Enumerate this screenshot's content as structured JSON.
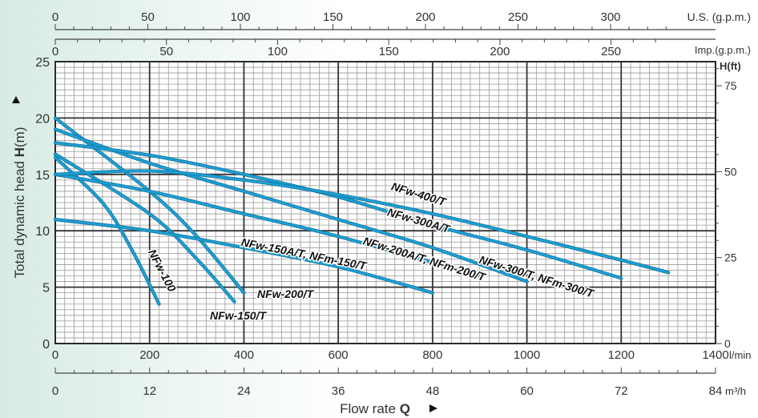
{
  "chart_data": {
    "type": "line",
    "xlabel": "Flow rate Q",
    "ylabel": "Total dynamic head H(m)",
    "x_unit": "l/min",
    "xlim": [
      0,
      1400
    ],
    "ylim": [
      0,
      25
    ],
    "grid": true,
    "x_ticks": [
      "0",
      "200",
      "400",
      "600",
      "800",
      "1000",
      "1200",
      "1400"
    ],
    "y_ticks": [
      "0",
      "5",
      "10",
      "15",
      "20",
      "25"
    ],
    "secondary_axes": {
      "top_us": {
        "unit": "U.S. (g.p.m.)",
        "ticks": [
          "0",
          "50",
          "100",
          "150",
          "200",
          "250",
          "300"
        ]
      },
      "top_imp": {
        "unit": "Imp.(g.p.m.)",
        "ticks": [
          "0",
          "50",
          "100",
          "150",
          "200",
          "250"
        ]
      },
      "bottom_m3h": {
        "unit": "m³/h",
        "ticks": [
          "0",
          "12",
          "24",
          "36",
          "48",
          "60",
          "72",
          "84"
        ]
      },
      "right_ft": {
        "unit": "H(ft)",
        "ticks": [
          "0",
          "25",
          "50",
          "75"
        ]
      }
    },
    "series": [
      {
        "name": "NFw-100",
        "x": [
          0,
          100,
          160,
          220
        ],
        "y": [
          16.5,
          12.5,
          8.5,
          3.5
        ]
      },
      {
        "name": "NFw-150/T",
        "x": [
          0,
          200,
          300,
          380
        ],
        "y": [
          16.8,
          11.5,
          7.5,
          3.7
        ]
      },
      {
        "name": "NFw-200/T",
        "x": [
          0,
          200,
          300,
          400
        ],
        "y": [
          20,
          13.5,
          9.5,
          4.5
        ]
      },
      {
        "name": "NFw-150A/T, NFm-150/T",
        "x": [
          0,
          200,
          400,
          600,
          800
        ],
        "y": [
          11,
          10,
          8.5,
          6.8,
          4.5
        ]
      },
      {
        "name": "NFw-200A/T, NFm-200/T",
        "x": [
          0,
          200,
          400,
          600,
          900
        ],
        "y": [
          15,
          13.5,
          11.5,
          9.5,
          6
        ]
      },
      {
        "name": "NFw-300/T, NFm-300/T",
        "x": [
          0,
          200,
          400,
          600,
          800,
          1000
        ],
        "y": [
          19,
          16,
          13.5,
          11,
          8.5,
          5.5
        ]
      },
      {
        "name": "NFw-300A/T",
        "x": [
          0,
          200,
          400,
          600,
          800,
          1000,
          1200
        ],
        "y": [
          17.8,
          16.7,
          15,
          13,
          10.5,
          8.3,
          5.8
        ]
      },
      {
        "name": "NFw-400/T",
        "x": [
          0,
          200,
          400,
          600,
          800,
          1000,
          1200,
          1300
        ],
        "y": [
          15,
          15.3,
          14.5,
          13.2,
          11.5,
          9.5,
          7.4,
          6.3
        ]
      }
    ]
  }
}
